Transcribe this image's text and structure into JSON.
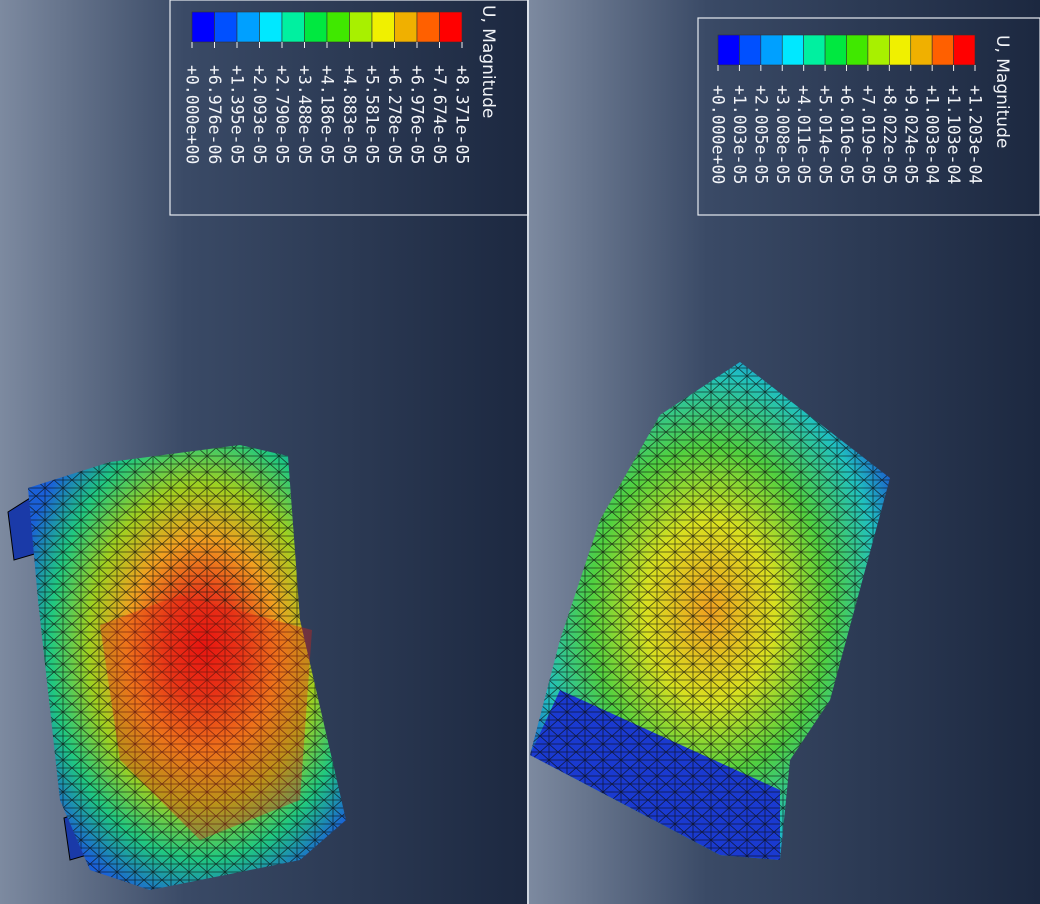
{
  "panels": [
    {
      "legend": {
        "title": "U, Magnitude",
        "labels": [
          "+8.371e-05",
          "+7.674e-05",
          "+6.976e-05",
          "+6.278e-05",
          "+5.581e-05",
          "+4.883e-05",
          "+4.186e-05",
          "+3.488e-05",
          "+2.790e-05",
          "+2.093e-05",
          "+1.395e-05",
          "+6.976e-06",
          "+0.000e+00"
        ]
      }
    },
    {
      "legend": {
        "title": "U, Magnitude",
        "labels": [
          "+1.203e-04",
          "+1.103e-04",
          "+1.003e-04",
          "+9.024e-05",
          "+8.022e-05",
          "+7.019e-05",
          "+6.016e-05",
          "+5.014e-05",
          "+4.011e-05",
          "+3.008e-05",
          "+2.005e-05",
          "+1.003e-05",
          "+0.000e+00"
        ]
      }
    }
  ]
}
